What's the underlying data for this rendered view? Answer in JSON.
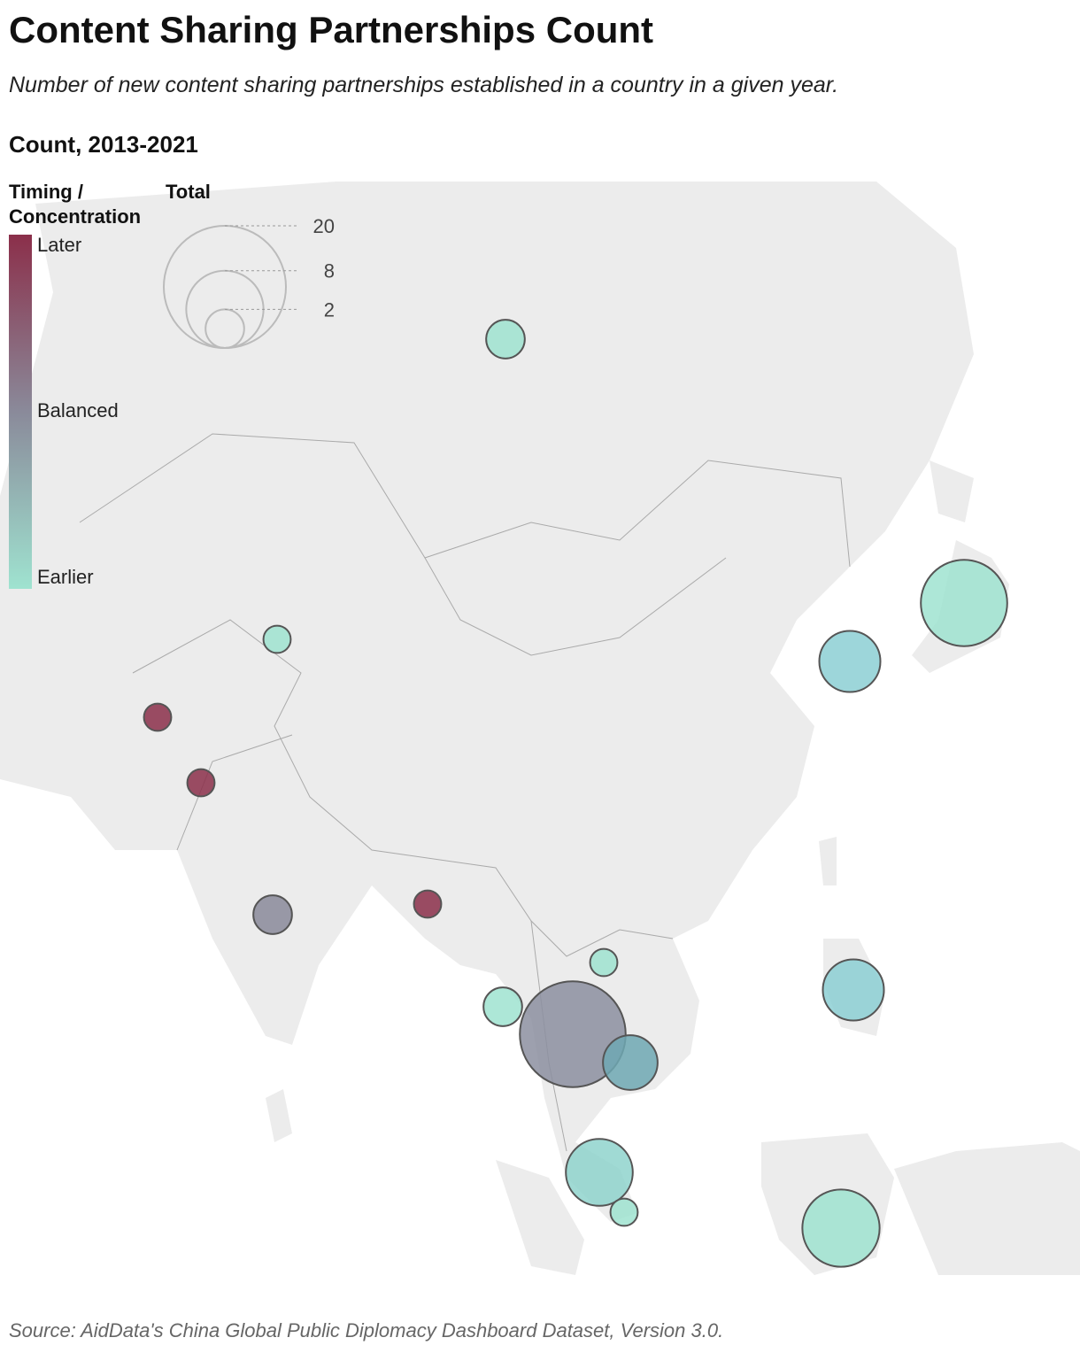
{
  "chart_data": {
    "type": "bubble-map",
    "title": "Content Sharing Partnerships Count",
    "subtitle": "Number of new content sharing partnerships established in a country in a given year.",
    "section_title": "Count, 2013-2021",
    "color_legend": {
      "title": "Timing / Concentration",
      "labels": [
        "Later",
        "Balanced",
        "Earlier"
      ],
      "colors": [
        "#8b2f4a",
        "#8a8a9a",
        "#9fe3d0"
      ]
    },
    "size_legend": {
      "title": "Total",
      "values": [
        20,
        8,
        2
      ]
    },
    "values": [
      2,
      10,
      5,
      1,
      1,
      1,
      2,
      1,
      1,
      2,
      15,
      4,
      5,
      6,
      1,
      8
    ],
    "colors": [
      "#9fe3d0",
      "#9fe3d0",
      "#8ccfd3",
      "#9fe3d0",
      "#8b2f4a",
      "#8b2f4a",
      "#8a8a9a",
      "#8b2f4a",
      "#9fe3d0",
      "#9fe3d0",
      "#8c8fa0",
      "#6fa8b3",
      "#8ccfd3",
      "#8fd3cc",
      "#9fe3d0",
      "#9fe3d0"
    ],
    "source": "Source: AidData's China Global Public Diplomacy Dashboard Dataset, Version 3.0."
  }
}
